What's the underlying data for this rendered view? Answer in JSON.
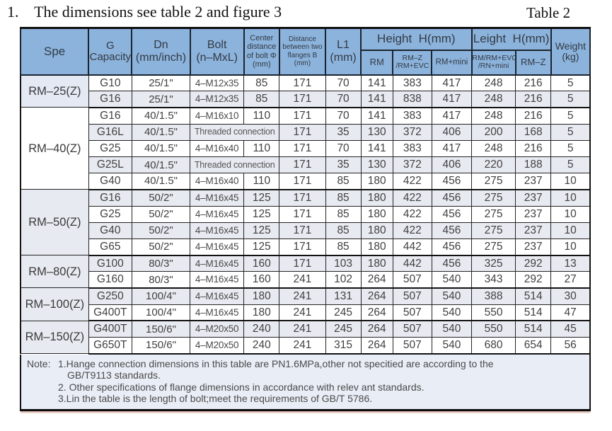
{
  "title": "1.    The dimensions see table 2 and figure 3",
  "table_label": "Table 2",
  "table": {
    "header": {
      "spe": "Spe",
      "g_capacity": "G\nCapacity",
      "dn": "Dn\n(mm/inch)",
      "bolt": "Bolt\n(n–MxL)",
      "center_distance": "Center\ndistance\nof bolt Φ\n(mm)",
      "flange_distance": "Distance\nbetween two\nflanges B\n(mm)",
      "l1": "L1\n(mm)",
      "height_section": "Height  H(mm)",
      "leight_section": "Leight  H(mm)",
      "sub_rm": "RM",
      "sub_rmz_evc": "RM–Z\n/RM+EVC",
      "sub_rm_mini": "RM+mini",
      "sub_rm_rmevc_rnmini": "RM/RM+EVC\n/RN+mini",
      "sub_rmz": "RM–Z",
      "weight": "Weight\n(kg)"
    },
    "groups": [
      {
        "label": "RM–25(Z)",
        "rows": 2
      },
      {
        "label": "RM–40(Z)",
        "rows": 5
      },
      {
        "label": "RM–50(Z)",
        "rows": 4
      },
      {
        "label": "RM–80(Z)",
        "rows": 2
      },
      {
        "label": "RM–100(Z)",
        "rows": 2
      },
      {
        "label": "RM–150(Z)",
        "rows": 2
      }
    ],
    "rows": [
      {
        "threaded": false,
        "cells": [
          "G10",
          "25/1\"",
          "4–M12x35",
          "85",
          "171",
          "70",
          "141",
          "383",
          "417",
          "248",
          "216",
          "5"
        ]
      },
      {
        "threaded": false,
        "cells": [
          "G16",
          "25/1\"",
          "4–M12x35",
          "85",
          "171",
          "70",
          "141",
          "838",
          "417",
          "248",
          "216",
          "5"
        ]
      },
      {
        "threaded": false,
        "cells": [
          "G16",
          "40/1.5\"",
          "4–M16x10",
          "110",
          "171",
          "70",
          "141",
          "383",
          "417",
          "248",
          "216",
          "5"
        ]
      },
      {
        "threaded": true,
        "cells": [
          "G16L",
          "40/1.5\"",
          "Threaded connection",
          "171",
          "35",
          "130",
          "372",
          "406",
          "200",
          "168",
          "5"
        ]
      },
      {
        "threaded": false,
        "cells": [
          "G25",
          "40/1.5\"",
          "4–M16x40",
          "110",
          "171",
          "70",
          "141",
          "383",
          "417",
          "248",
          "216",
          "5"
        ]
      },
      {
        "threaded": true,
        "cells": [
          "G25L",
          "40/1.5\"",
          "Threaded connection",
          "171",
          "35",
          "130",
          "372",
          "406",
          "220",
          "188",
          "5"
        ]
      },
      {
        "threaded": false,
        "cells": [
          "G40",
          "40/1.5\"",
          "4–M16x40",
          "110",
          "171",
          "85",
          "180",
          "422",
          "456",
          "275",
          "237",
          "10"
        ]
      },
      {
        "threaded": false,
        "cells": [
          "G16",
          "50/2\"",
          "4–M16x45",
          "125",
          "171",
          "85",
          "180",
          "422",
          "456",
          "275",
          "237",
          "10"
        ]
      },
      {
        "threaded": false,
        "cells": [
          "G25",
          "50/2\"",
          "4–M16x45",
          "125",
          "171",
          "85",
          "180",
          "422",
          "456",
          "275",
          "237",
          "10"
        ]
      },
      {
        "threaded": false,
        "cells": [
          "G40",
          "50/2\"",
          "4–M16x45",
          "125",
          "171",
          "85",
          "180",
          "422",
          "456",
          "275",
          "237",
          "10"
        ]
      },
      {
        "threaded": false,
        "cells": [
          "G65",
          "50/2\"",
          "4–M16x45",
          "125",
          "171",
          "85",
          "180",
          "442",
          "456",
          "275",
          "237",
          "10"
        ]
      },
      {
        "threaded": false,
        "cells": [
          "G100",
          "80/3\"",
          "4–M16x45",
          "160",
          "171",
          "103",
          "180",
          "442",
          "456",
          "325",
          "292",
          "13"
        ]
      },
      {
        "threaded": false,
        "cells": [
          "G160",
          "80/3\"",
          "4–M16x45",
          "160",
          "241",
          "102",
          "264",
          "507",
          "540",
          "343",
          "292",
          "27"
        ]
      },
      {
        "threaded": false,
        "cells": [
          "G250",
          "100/4\"",
          "4–M16x45",
          "180",
          "241",
          "131",
          "264",
          "507",
          "540",
          "388",
          "514",
          "30"
        ]
      },
      {
        "threaded": false,
        "cells": [
          "G400T",
          "100/4\"",
          "4–M16x45",
          "180",
          "241",
          "245",
          "264",
          "507",
          "540",
          "550",
          "514",
          "47"
        ]
      },
      {
        "threaded": false,
        "cells": [
          "G400T",
          "150/6\"",
          "4–M20x50",
          "240",
          "241",
          "245",
          "264",
          "507",
          "540",
          "550",
          "514",
          "45"
        ]
      },
      {
        "threaded": false,
        "cells": [
          "G650T",
          "150/6\"",
          "4–M20x50",
          "240",
          "241",
          "315",
          "264",
          "507",
          "540",
          "680",
          "654",
          "56"
        ]
      }
    ]
  },
  "note": {
    "label": "Note:",
    "lines": [
      {
        "text": "1.Hange connection dimensions in this table are PN1.6MPa,other not specitied are according to the",
        "cont": false
      },
      {
        "text": "GB/T9113 standards.",
        "cont": true
      },
      {
        "text": "2. Other specifications of flange dimensions in accordance with relev ant standards.",
        "cont": false
      },
      {
        "text": "3.Lin the table is the length of bolt;meet the requirements of GB/T 5786.",
        "cont": false
      }
    ]
  },
  "colors": {
    "header_blue": "#8cb3dc",
    "stripe": "#e8eaf1",
    "spe_alt": "#e4e9f4",
    "note_bg": "#e9edf6",
    "border": "#141414"
  }
}
